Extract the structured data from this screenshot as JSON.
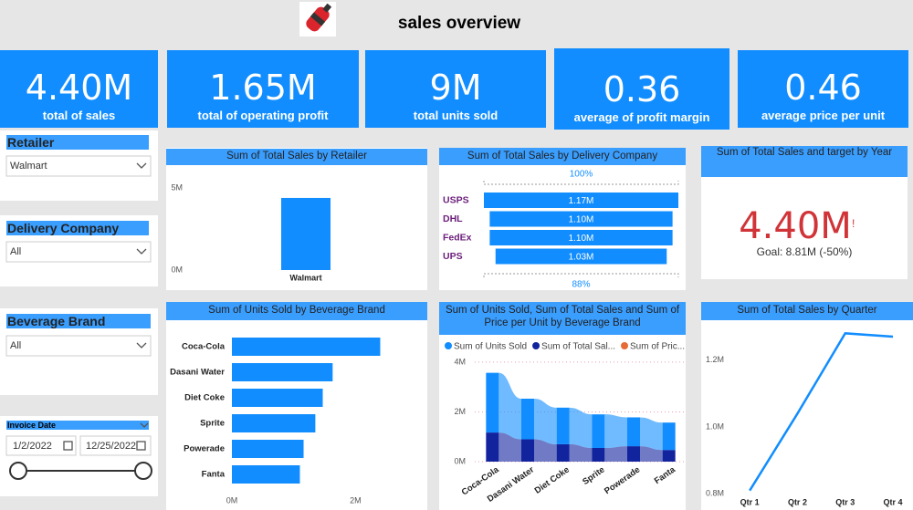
{
  "header": {
    "title": "sales overview"
  },
  "kpis": [
    {
      "value": "4.40M",
      "label": "total of sales"
    },
    {
      "value": "1.65M",
      "label": "total of operating profit"
    },
    {
      "value": "9M",
      "label": "total units sold"
    },
    {
      "value": "0.36",
      "label": "average of profit margin"
    },
    {
      "value": "0.46",
      "label": "average price per unit"
    }
  ],
  "slicers": [
    {
      "title": "Retailer",
      "selection": "Walmart"
    },
    {
      "title": "Delivery Company",
      "selection": "All"
    },
    {
      "title": "Beverage Brand",
      "selection": "All"
    },
    {
      "title": "Invoice Date",
      "start": "1/2/2022",
      "end": "12/25/2022"
    }
  ],
  "target_card": {
    "title": "Sum of Total Sales and target by Year",
    "value": "4.40M",
    "alert": "!",
    "goal": "Goal: 8.81M (-50%)"
  },
  "chart_data": [
    {
      "type": "bar",
      "title": "Sum of Total Sales by Retailer",
      "categories": [
        "Walmart"
      ],
      "values": [
        4400000
      ],
      "color": "#118dff",
      "ylim": [
        0,
        5900000
      ],
      "yticks": [
        {
          "value": 0,
          "label": "0M"
        },
        {
          "value": 5000000,
          "label": "5M"
        }
      ]
    },
    {
      "type": "funnel",
      "title": "Sum of Total Sales by Delivery Company",
      "categories": [
        "USPS",
        "DHL",
        "FedEx",
        "UPS"
      ],
      "values": [
        1170000,
        1100000,
        1100000,
        1030000
      ],
      "value_labels": [
        "1.17M",
        "1.10M",
        "1.10M",
        "1.03M"
      ],
      "color": "#118dff",
      "top_label": "100%",
      "bottom_label": "88%"
    },
    {
      "type": "hbar",
      "title": "Sum of Units Sold by Beverage Brand",
      "categories": [
        "Coca-Cola",
        "Dasani Water",
        "Diet Coke",
        "Sprite",
        "Powerade",
        "Fanta"
      ],
      "values": [
        2400000,
        1630000,
        1470000,
        1350000,
        1160000,
        1100000
      ],
      "color": "#118dff",
      "xlim": [
        0,
        2600000
      ],
      "xticks": [
        {
          "value": 0,
          "label": "0M"
        },
        {
          "value": 2000000,
          "label": "2M"
        }
      ]
    },
    {
      "type": "ribbon",
      "title": "Sum of Units Sold, Sum of Total Sales and Sum of Price per Unit by Beverage Brand",
      "categories": [
        "Coca-Cola",
        "Dasani Water",
        "Diet Coke",
        "Sprite",
        "Powerade",
        "Fanta"
      ],
      "series": [
        {
          "name": "Sum of Units Sold",
          "color": "#118dff",
          "values": [
            2400000,
            1630000,
            1470000,
            1350000,
            1160000,
            1100000
          ]
        },
        {
          "name": "Sum of Total Sal...",
          "color": "#12239e",
          "values": [
            1170000,
            900000,
            700000,
            550000,
            620000,
            470000
          ]
        },
        {
          "name": "Sum of Pric...",
          "color": "#e66c37",
          "values": [
            0.46,
            0.46,
            0.46,
            0.46,
            0.46,
            0.46
          ]
        }
      ],
      "ylim": [
        0,
        4400000
      ],
      "yticks": [
        {
          "value": 0,
          "label": "0M"
        },
        {
          "value": 2000000,
          "label": "2M"
        },
        {
          "value": 4000000,
          "label": "4M"
        }
      ],
      "grid": true
    },
    {
      "type": "line",
      "title": "Sum of Total Sales by Quarter",
      "categories": [
        "Qtr 1",
        "Qtr 2",
        "Qtr 3",
        "Qtr 4"
      ],
      "values": [
        810000,
        1040000,
        1280000,
        1270000
      ],
      "color": "#118dff",
      "ylim": [
        790000,
        1300000
      ],
      "yticks": [
        {
          "value": 800000,
          "label": "0.8M"
        },
        {
          "value": 1000000,
          "label": "1.0M"
        },
        {
          "value": 1200000,
          "label": "1.2M"
        }
      ]
    }
  ]
}
